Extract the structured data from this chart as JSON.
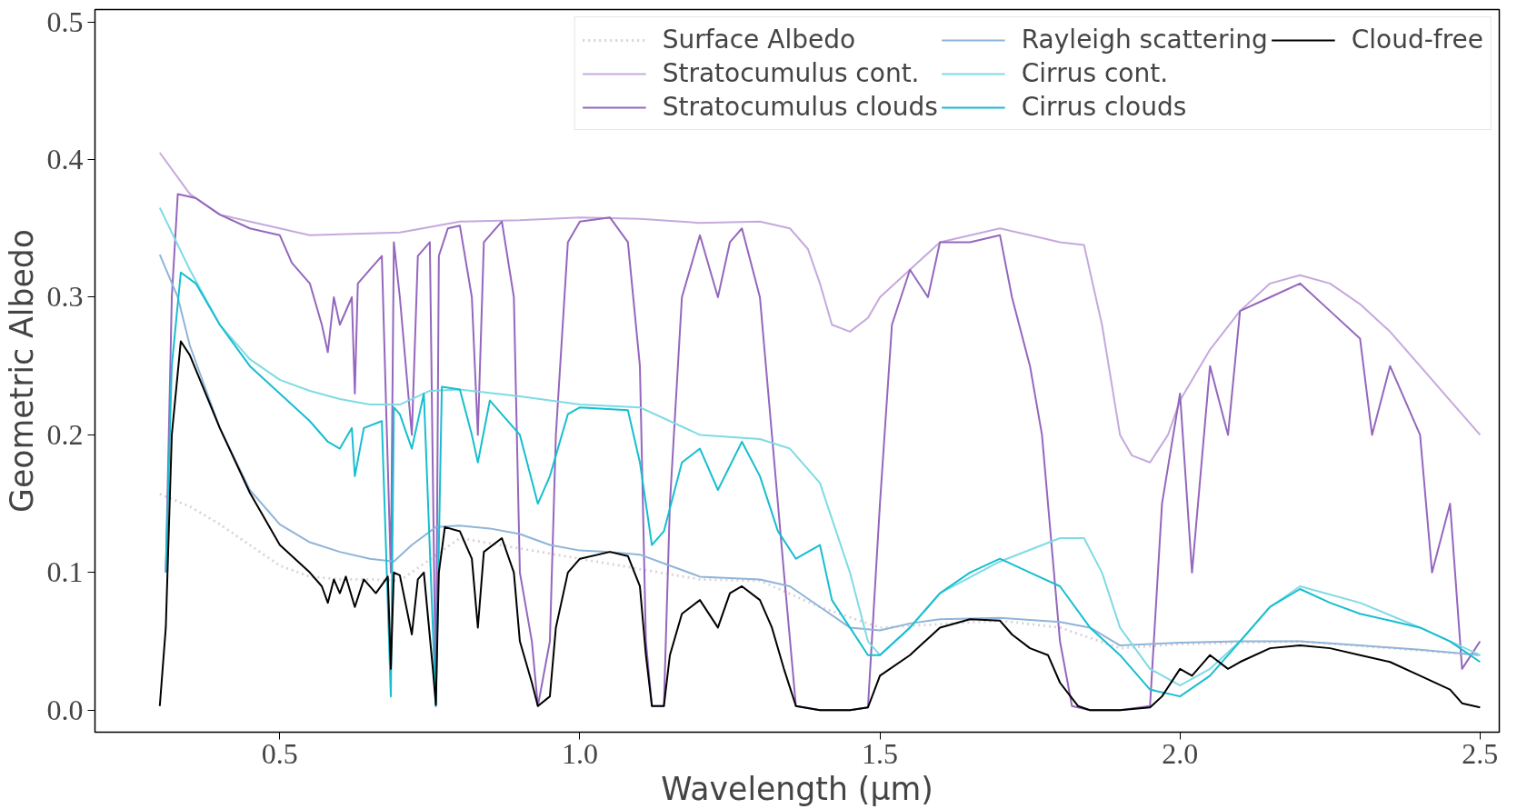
{
  "chart_data": {
    "type": "line",
    "xlabel": "Wavelength (μm)",
    "ylabel": "Geometric Albedo",
    "xlim": [
      0.192,
      2.532
    ],
    "ylim": [
      -0.016,
      0.509
    ],
    "xticks": [
      {
        "value": 0.5,
        "label": "0.5"
      },
      {
        "value": 1.0,
        "label": "1.0"
      },
      {
        "value": 1.5,
        "label": "1.5"
      },
      {
        "value": 2.0,
        "label": "2.0"
      },
      {
        "value": 2.5,
        "label": "2.5"
      }
    ],
    "yticks": [
      {
        "value": 0,
        "label": "0.0"
      },
      0.1,
      0.2,
      0.3,
      0.4,
      0.5
    ],
    "grid": false,
    "legend": "top right",
    "series": [
      {
        "name": "Surface Albedo",
        "color": "#ddd0d8",
        "line_style": "dotted",
        "x": [
          0.3,
          0.35,
          0.4,
          0.45,
          0.5,
          0.55,
          0.6,
          0.65,
          0.7,
          0.8,
          1.0,
          1.2,
          1.3,
          1.4,
          1.5,
          1.7,
          1.8,
          1.9,
          2.0,
          2.2,
          2.5
        ],
        "values": [
          0.157,
          0.148,
          0.135,
          0.12,
          0.105,
          0.097,
          0.095,
          0.095,
          0.094,
          0.125,
          0.11,
          0.095,
          0.094,
          0.075,
          0.06,
          0.065,
          0.06,
          0.045,
          0.048,
          0.05,
          0.04
        ]
      },
      {
        "name": "Stratocumulus cont.",
        "color": "#c5a9dd",
        "x": [
          0.3,
          0.35,
          0.4,
          0.5,
          0.55,
          0.7,
          0.8,
          0.9,
          1.0,
          1.1,
          1.2,
          1.3,
          1.35,
          1.38,
          1.4,
          1.42,
          1.45,
          1.48,
          1.5,
          1.55,
          1.6,
          1.7,
          1.75,
          1.8,
          1.84,
          1.87,
          1.9,
          1.92,
          1.95,
          1.98,
          2.0,
          2.05,
          2.1,
          2.15,
          2.2,
          2.25,
          2.3,
          2.35,
          2.4,
          2.45,
          2.5
        ],
        "values": [
          0.405,
          0.375,
          0.36,
          0.35,
          0.345,
          0.347,
          0.355,
          0.356,
          0.358,
          0.357,
          0.354,
          0.355,
          0.35,
          0.335,
          0.31,
          0.28,
          0.275,
          0.285,
          0.3,
          0.32,
          0.34,
          0.35,
          0.345,
          0.34,
          0.338,
          0.28,
          0.2,
          0.185,
          0.18,
          0.2,
          0.225,
          0.262,
          0.29,
          0.31,
          0.316,
          0.31,
          0.295,
          0.275,
          0.25,
          0.225,
          0.2
        ]
      },
      {
        "name": "Stratocumulus clouds",
        "color": "#9467bd",
        "x": [
          0.31,
          0.32,
          0.33,
          0.36,
          0.4,
          0.45,
          0.5,
          0.52,
          0.55,
          0.57,
          0.58,
          0.59,
          0.6,
          0.62,
          0.625,
          0.63,
          0.65,
          0.67,
          0.685,
          0.69,
          0.7,
          0.72,
          0.73,
          0.75,
          0.76,
          0.765,
          0.78,
          0.8,
          0.82,
          0.83,
          0.84,
          0.87,
          0.89,
          0.9,
          0.92,
          0.93,
          0.95,
          0.96,
          0.98,
          1.0,
          1.05,
          1.08,
          1.1,
          1.11,
          1.12,
          1.14,
          1.15,
          1.17,
          1.2,
          1.23,
          1.25,
          1.27,
          1.3,
          1.32,
          1.34,
          1.36,
          1.4,
          1.45,
          1.48,
          1.5,
          1.52,
          1.55,
          1.58,
          1.6,
          1.65,
          1.7,
          1.72,
          1.75,
          1.77,
          1.8,
          1.82,
          1.85,
          1.9,
          1.95,
          1.97,
          2.0,
          2.02,
          2.05,
          2.08,
          2.1,
          2.15,
          2.2,
          2.25,
          2.3,
          2.32,
          2.35,
          2.4,
          2.42,
          2.45,
          2.47,
          2.5
        ],
        "values": [
          0.1,
          0.3,
          0.375,
          0.372,
          0.36,
          0.35,
          0.345,
          0.325,
          0.31,
          0.28,
          0.26,
          0.3,
          0.28,
          0.3,
          0.23,
          0.31,
          0.32,
          0.33,
          0.1,
          0.34,
          0.3,
          0.2,
          0.33,
          0.34,
          0.003,
          0.33,
          0.35,
          0.352,
          0.3,
          0.2,
          0.34,
          0.355,
          0.3,
          0.1,
          0.05,
          0.003,
          0.05,
          0.2,
          0.34,
          0.355,
          0.358,
          0.34,
          0.25,
          0.05,
          0.003,
          0.003,
          0.15,
          0.3,
          0.345,
          0.3,
          0.34,
          0.35,
          0.3,
          0.2,
          0.1,
          0.003,
          0.0,
          0.0,
          0.002,
          0.15,
          0.28,
          0.32,
          0.3,
          0.34,
          0.34,
          0.345,
          0.3,
          0.25,
          0.2,
          0.05,
          0.003,
          0.0,
          0.0,
          0.003,
          0.15,
          0.23,
          0.1,
          0.25,
          0.2,
          0.29,
          0.3,
          0.31,
          0.29,
          0.27,
          0.2,
          0.25,
          0.2,
          0.1,
          0.15,
          0.03,
          0.05
        ]
      },
      {
        "name": "Rayleigh scattering",
        "color": "#8fb4d9",
        "x": [
          0.3,
          0.33,
          0.35,
          0.4,
          0.45,
          0.5,
          0.55,
          0.6,
          0.65,
          0.69,
          0.72,
          0.76,
          0.8,
          0.85,
          0.9,
          0.95,
          1.0,
          1.05,
          1.1,
          1.15,
          1.2,
          1.3,
          1.35,
          1.4,
          1.45,
          1.5,
          1.55,
          1.6,
          1.7,
          1.8,
          1.85,
          1.9,
          2.0,
          2.1,
          2.2,
          2.3,
          2.4,
          2.5
        ],
        "values": [
          0.331,
          0.3,
          0.265,
          0.205,
          0.16,
          0.135,
          0.122,
          0.115,
          0.11,
          0.108,
          0.12,
          0.133,
          0.134,
          0.132,
          0.128,
          0.12,
          0.116,
          0.115,
          0.113,
          0.105,
          0.097,
          0.095,
          0.09,
          0.075,
          0.06,
          0.058,
          0.063,
          0.066,
          0.067,
          0.064,
          0.06,
          0.047,
          0.049,
          0.05,
          0.05,
          0.047,
          0.044,
          0.04
        ]
      },
      {
        "name": "Cirrus cont.",
        "color": "#7fdbe4",
        "x": [
          0.3,
          0.35,
          0.4,
          0.45,
          0.5,
          0.55,
          0.6,
          0.65,
          0.7,
          0.75,
          0.8,
          0.9,
          1.0,
          1.1,
          1.15,
          1.2,
          1.3,
          1.35,
          1.4,
          1.45,
          1.48,
          1.5,
          1.55,
          1.6,
          1.7,
          1.8,
          1.84,
          1.87,
          1.9,
          1.95,
          2.0,
          2.05,
          2.1,
          2.15,
          2.2,
          2.3,
          2.4,
          2.5
        ],
        "values": [
          0.365,
          0.32,
          0.28,
          0.255,
          0.24,
          0.232,
          0.226,
          0.222,
          0.222,
          0.232,
          0.233,
          0.228,
          0.222,
          0.22,
          0.21,
          0.2,
          0.197,
          0.19,
          0.165,
          0.1,
          0.05,
          0.04,
          0.06,
          0.085,
          0.108,
          0.125,
          0.125,
          0.1,
          0.06,
          0.03,
          0.018,
          0.03,
          0.05,
          0.075,
          0.09,
          0.078,
          0.06,
          0.04
        ]
      },
      {
        "name": "Cirrus clouds",
        "color": "#17becf",
        "x": [
          0.31,
          0.32,
          0.335,
          0.36,
          0.4,
          0.45,
          0.5,
          0.55,
          0.58,
          0.6,
          0.62,
          0.625,
          0.64,
          0.67,
          0.685,
          0.69,
          0.7,
          0.72,
          0.74,
          0.76,
          0.77,
          0.8,
          0.82,
          0.83,
          0.85,
          0.9,
          0.93,
          0.95,
          0.98,
          1.0,
          1.08,
          1.1,
          1.12,
          1.14,
          1.17,
          1.2,
          1.23,
          1.27,
          1.3,
          1.33,
          1.36,
          1.4,
          1.42,
          1.45,
          1.48,
          1.5,
          1.55,
          1.6,
          1.65,
          1.7,
          1.75,
          1.8,
          1.85,
          1.9,
          1.95,
          2.0,
          2.05,
          2.1,
          2.15,
          2.2,
          2.25,
          2.3,
          2.35,
          2.4,
          2.45,
          2.5
        ],
        "values": [
          0.1,
          0.25,
          0.318,
          0.31,
          0.28,
          0.25,
          0.23,
          0.21,
          0.195,
          0.19,
          0.205,
          0.17,
          0.205,
          0.21,
          0.01,
          0.22,
          0.215,
          0.19,
          0.23,
          0.003,
          0.235,
          0.233,
          0.2,
          0.18,
          0.225,
          0.2,
          0.15,
          0.17,
          0.215,
          0.22,
          0.218,
          0.18,
          0.12,
          0.13,
          0.18,
          0.19,
          0.16,
          0.195,
          0.17,
          0.13,
          0.11,
          0.12,
          0.08,
          0.06,
          0.04,
          0.04,
          0.06,
          0.085,
          0.1,
          0.11,
          0.1,
          0.09,
          0.06,
          0.04,
          0.015,
          0.01,
          0.025,
          0.05,
          0.075,
          0.088,
          0.078,
          0.07,
          0.065,
          0.06,
          0.05,
          0.035
        ]
      },
      {
        "name": "Cloud-free",
        "color": "#000000",
        "x": [
          0.3,
          0.31,
          0.32,
          0.335,
          0.35,
          0.4,
          0.45,
          0.5,
          0.55,
          0.57,
          0.58,
          0.59,
          0.6,
          0.61,
          0.625,
          0.64,
          0.66,
          0.68,
          0.685,
          0.69,
          0.7,
          0.72,
          0.73,
          0.74,
          0.755,
          0.76,
          0.765,
          0.775,
          0.8,
          0.82,
          0.83,
          0.84,
          0.87,
          0.89,
          0.9,
          0.92,
          0.93,
          0.95,
          0.96,
          0.98,
          1.0,
          1.05,
          1.08,
          1.1,
          1.11,
          1.12,
          1.14,
          1.15,
          1.17,
          1.2,
          1.23,
          1.25,
          1.27,
          1.3,
          1.32,
          1.34,
          1.36,
          1.4,
          1.45,
          1.48,
          1.5,
          1.55,
          1.6,
          1.65,
          1.7,
          1.72,
          1.75,
          1.78,
          1.8,
          1.83,
          1.85,
          1.9,
          1.95,
          1.97,
          2.0,
          2.02,
          2.05,
          2.08,
          2.1,
          2.15,
          2.2,
          2.25,
          2.3,
          2.35,
          2.4,
          2.45,
          2.47,
          2.5
        ],
        "values": [
          0.003,
          0.06,
          0.2,
          0.268,
          0.258,
          0.205,
          0.158,
          0.12,
          0.1,
          0.09,
          0.078,
          0.095,
          0.085,
          0.097,
          0.075,
          0.095,
          0.085,
          0.097,
          0.03,
          0.1,
          0.098,
          0.055,
          0.095,
          0.1,
          0.03,
          0.004,
          0.1,
          0.133,
          0.13,
          0.11,
          0.06,
          0.115,
          0.125,
          0.1,
          0.05,
          0.02,
          0.003,
          0.01,
          0.06,
          0.1,
          0.11,
          0.115,
          0.112,
          0.09,
          0.04,
          0.003,
          0.003,
          0.04,
          0.07,
          0.08,
          0.06,
          0.085,
          0.09,
          0.08,
          0.06,
          0.03,
          0.003,
          0.0,
          0.0,
          0.002,
          0.025,
          0.04,
          0.06,
          0.066,
          0.065,
          0.055,
          0.045,
          0.04,
          0.02,
          0.003,
          0.0,
          0.0,
          0.002,
          0.01,
          0.03,
          0.025,
          0.04,
          0.03,
          0.035,
          0.045,
          0.047,
          0.045,
          0.04,
          0.035,
          0.025,
          0.015,
          0.005,
          0.002
        ]
      }
    ]
  }
}
